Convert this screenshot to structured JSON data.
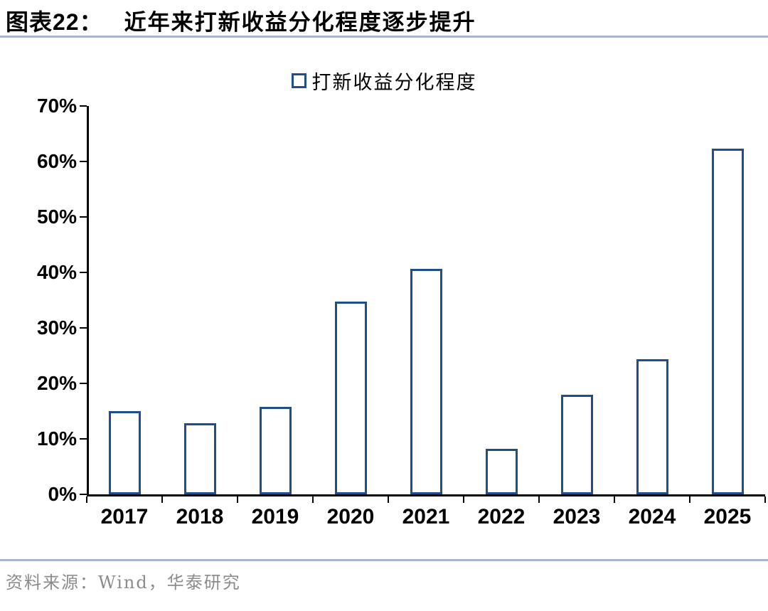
{
  "header": {
    "label": "图表22：",
    "title": "近年来打新收益分化程度逐步提升"
  },
  "chart_data": {
    "type": "bar",
    "title": "近年来打新收益分化程度逐步提升",
    "legend": [
      {
        "label": "打新收益分化程度",
        "marker": "hollow-square"
      }
    ],
    "legend_position": "top-center",
    "categories": [
      "2017",
      "2018",
      "2019",
      "2020",
      "2021",
      "2022",
      "2023",
      "2024",
      "2025"
    ],
    "values": [
      15.0,
      12.8,
      15.8,
      34.8,
      40.6,
      8.2,
      18.0,
      24.3,
      62.3
    ],
    "unit": "%",
    "xlabel": "",
    "ylabel": "",
    "ylim": [
      0,
      70
    ],
    "yticks": [
      "0%",
      "10%",
      "20%",
      "30%",
      "40%",
      "50%",
      "60%",
      "70%"
    ],
    "grid": false,
    "bar_fill": "#FFFFFF",
    "bar_border": "#1F4E8C"
  },
  "footer": {
    "source": "资料来源：Wind，华泰研究"
  },
  "colors": {
    "accent_navy": "#1F4E8C",
    "rule_blue": "#A6B8CD",
    "axis_black": "#000000",
    "source_gray": "#8C8C8C"
  }
}
